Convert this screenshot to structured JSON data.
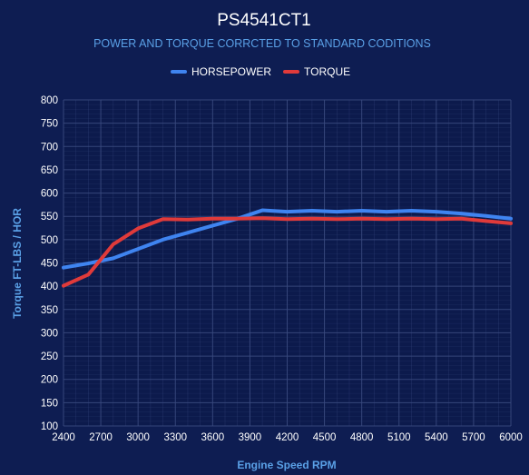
{
  "colors": {
    "background": "#0e1d52",
    "plot_background": "#0c1a4c",
    "grid": "#3a4a80",
    "title": "#ffffff",
    "subtitle": "#5aa0e6",
    "axis_title": "#5aa0e6",
    "tick_label": "#ffffff",
    "horsepower": "#3f84f0",
    "torque": "#e03a3a"
  },
  "chart_data": {
    "type": "line",
    "title": "PS4541CT1",
    "subtitle": "POWER AND TORQUE CORRCTED TO STANDARD CODITIONS",
    "xlabel": "Engine Speed RPM",
    "ylabel": "Torque FT-LBS / HOR",
    "xlim": [
      2400,
      6000
    ],
    "ylim": [
      100,
      800
    ],
    "x_ticks": [
      2400,
      2700,
      3000,
      3300,
      3600,
      3900,
      4200,
      4500,
      4800,
      5100,
      5400,
      5700,
      6000
    ],
    "y_ticks": [
      100,
      150,
      200,
      250,
      300,
      350,
      400,
      450,
      500,
      550,
      600,
      650,
      700,
      750,
      800
    ],
    "grid": true,
    "legend_position": "top-center",
    "x": [
      2400,
      2600,
      2800,
      3000,
      3200,
      3400,
      3600,
      3800,
      4000,
      4200,
      4400,
      4600,
      4800,
      5000,
      5200,
      5400,
      5600,
      5800,
      6000
    ],
    "series": [
      {
        "name": "HORSEPOWER",
        "color_key": "horsepower",
        "values": [
          440,
          449,
          460,
          480,
          500,
          515,
          530,
          545,
          563,
          560,
          562,
          560,
          562,
          560,
          562,
          560,
          556,
          551,
          545
        ]
      },
      {
        "name": "TORQUE",
        "color_key": "torque",
        "values": [
          401,
          425,
          490,
          524,
          544,
          543,
          545,
          545,
          546,
          544,
          545,
          544,
          545,
          544,
          545,
          544,
          545,
          540,
          535
        ]
      }
    ]
  }
}
